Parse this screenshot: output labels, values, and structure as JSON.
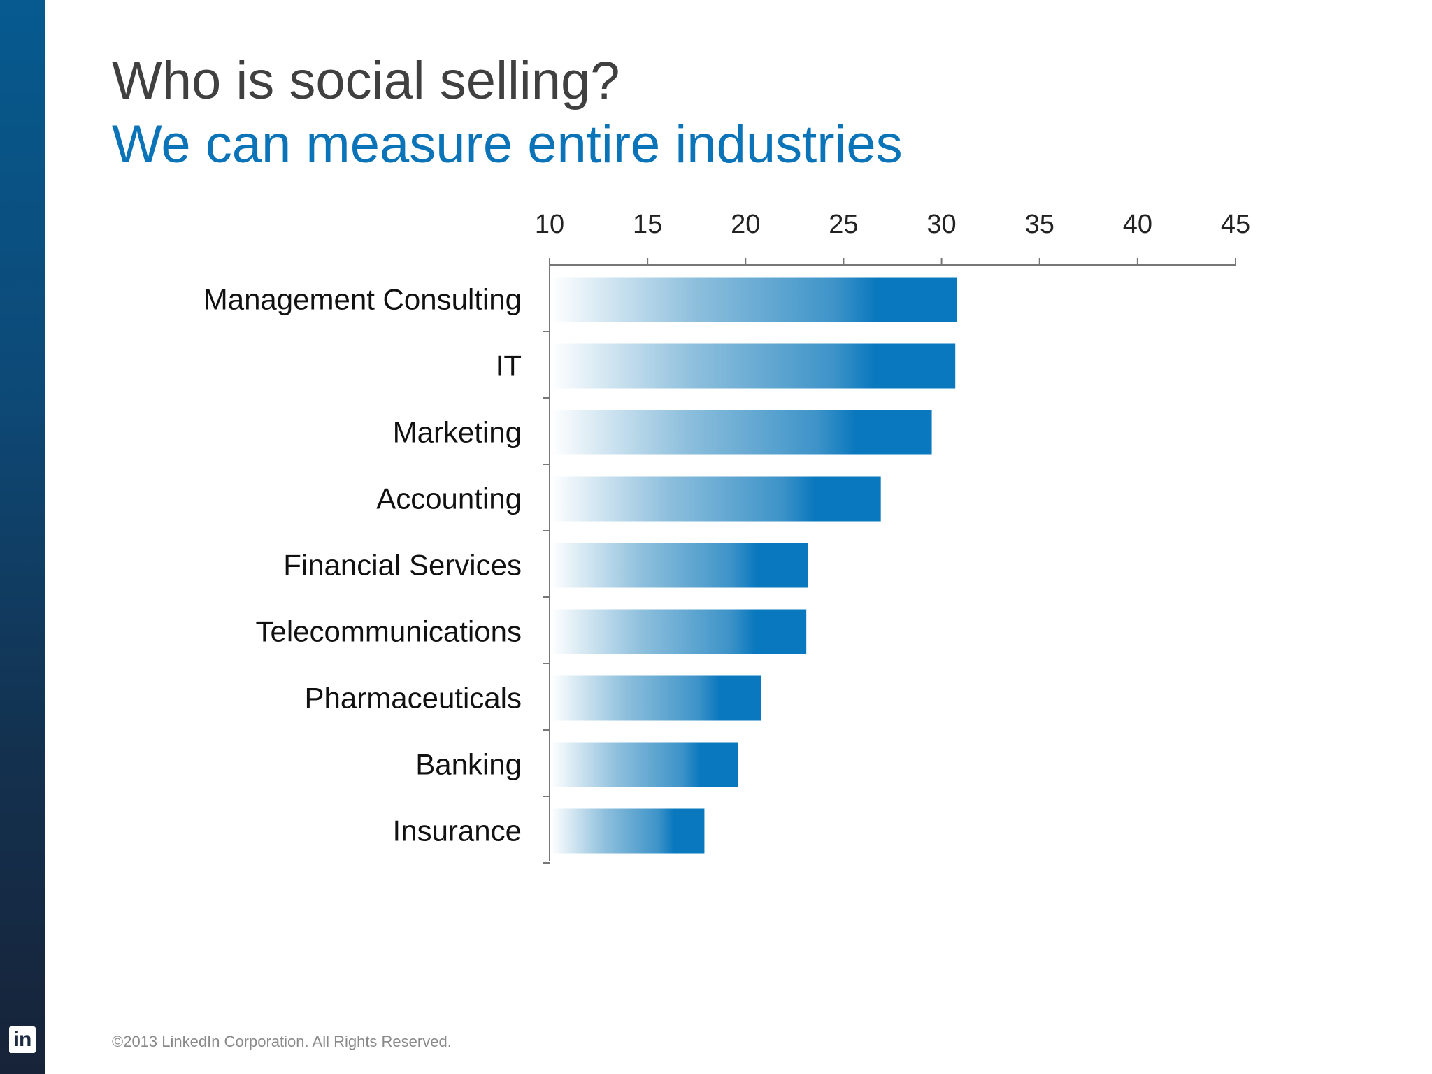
{
  "slide": {
    "title": "Who is social selling?",
    "subtitle": "We can measure entire industries",
    "footer": "©2013 LinkedIn Corporation. All Rights Reserved.",
    "logo_text": "in"
  },
  "colors": {
    "title": "#404040",
    "subtitle": "#0b74b8",
    "bar_dark": "#0a78be",
    "bar_light": "#ffffff",
    "axis": "#777777"
  },
  "chart_data": {
    "type": "bar",
    "orientation": "horizontal",
    "categories": [
      "Management Consulting",
      "IT",
      "Marketing",
      "Accounting",
      "Financial Services",
      "Telecommunications",
      "Pharmaceuticals",
      "Banking",
      "Insurance"
    ],
    "values": [
      30.8,
      30.7,
      29.5,
      26.9,
      23.2,
      23.1,
      20.8,
      19.6,
      17.9
    ],
    "xlim": [
      10,
      45
    ],
    "xticks": [
      "10",
      "15",
      "20",
      "25",
      "30",
      "35",
      "40",
      "45"
    ],
    "x_axis_position": "top",
    "grid": false,
    "legend": "none"
  }
}
